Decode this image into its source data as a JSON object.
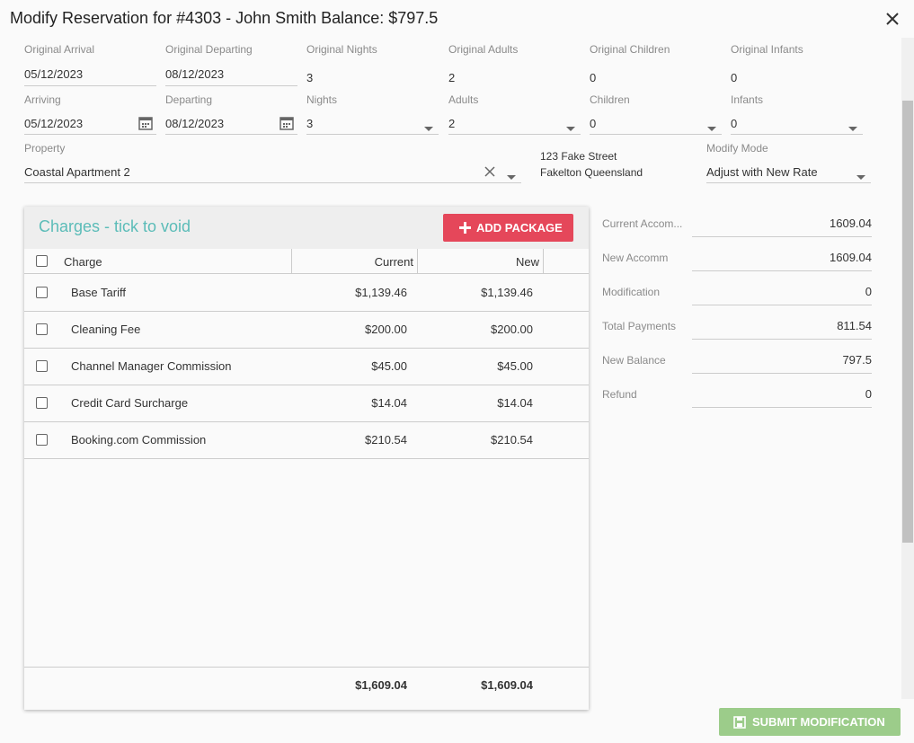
{
  "dialog": {
    "title": "Modify Reservation for #4303 - John Smith Balance: $797.5"
  },
  "original": [
    {
      "label": "Original Arrival",
      "value": "05/12/2023"
    },
    {
      "label": "Original Departing",
      "value": "08/12/2023"
    },
    {
      "label": "Original Nights",
      "value": "3"
    },
    {
      "label": "Original Adults",
      "value": "2"
    },
    {
      "label": "Original Children",
      "value": "0"
    },
    {
      "label": "Original Infants",
      "value": "0"
    }
  ],
  "modify": [
    {
      "label": "Arriving",
      "value": "05/12/2023"
    },
    {
      "label": "Departing",
      "value": "08/12/2023"
    },
    {
      "label": "Nights",
      "value": "3"
    },
    {
      "label": "Adults",
      "value": "2"
    },
    {
      "label": "Children",
      "value": "0"
    },
    {
      "label": "Infants",
      "value": "0"
    }
  ],
  "property": {
    "label": "Property",
    "value": "Coastal Apartment 2"
  },
  "address": [
    "123 Fake Street",
    "Fakelton Queensland"
  ],
  "modify_mode": {
    "label": "Modify Mode",
    "value": "Adjust with New Rate"
  },
  "charges": {
    "title": "Charges - tick to void",
    "add_button": "ADD PACKAGE",
    "columns": [
      "Charge",
      "Current",
      "New"
    ],
    "rows": [
      [
        "Base Tariff",
        "$1,139.46",
        "$1,139.46"
      ],
      [
        "Cleaning Fee",
        "$200.00",
        "$200.00"
      ],
      [
        "Channel Manager Commission",
        "$45.00",
        "$45.00"
      ],
      [
        "Credit Card Surcharge",
        "$14.04",
        "$14.04"
      ],
      [
        "Booking.com Commission",
        "$210.54",
        "$210.54"
      ]
    ],
    "totals": [
      "$1,609.04",
      "$1,609.04"
    ]
  },
  "summary": [
    {
      "label": "Current Accom...",
      "value": "1609.04"
    },
    {
      "label": "New Accomm",
      "value": "1609.04"
    },
    {
      "label": "Modification",
      "value": "0"
    },
    {
      "label": "Total Payments",
      "value": "811.54"
    },
    {
      "label": "New Balance",
      "value": "797.5"
    },
    {
      "label": "Refund",
      "value": "0"
    }
  ],
  "submit_button": "SUBMIT MODIFICATION"
}
